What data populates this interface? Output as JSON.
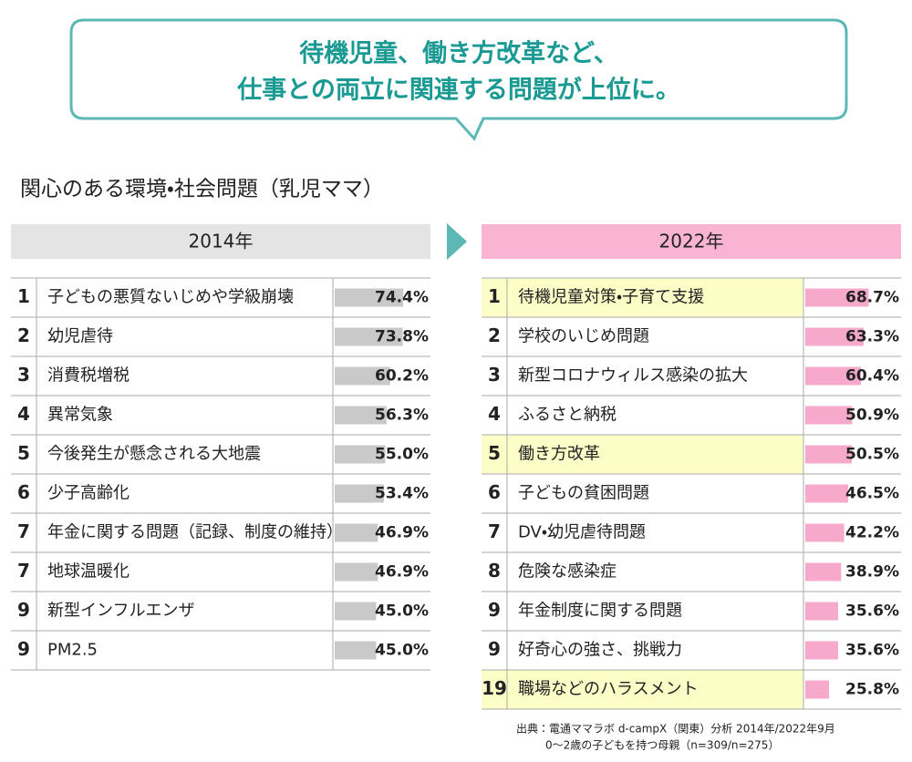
{
  "callout": [
    "待機児童、働き方改革など、",
    "仕事との両立に関連する問題が上位に。"
  ],
  "heading": "関心のある環境・社会問題（乳児ママ）",
  "source": [
    "出典：電通ママラボ d-campX（関東）分析 2014年/2022年9月",
    "0～2歳の子どもを持つ母親（n=309/n=275）"
  ],
  "chart_data": [
    {
      "type": "bar",
      "title": "2014年",
      "header_color": "#e4e4e4",
      "color": "#c9c9c9",
      "xlim": [
        0,
        100
      ],
      "ranks": [
        1,
        2,
        3,
        4,
        5,
        6,
        7,
        7,
        9,
        9
      ],
      "categories": [
        "子どもの悪質ないじめや学級崩壊",
        "幼児虐待",
        "消費税増税",
        "異常気象",
        "今後発生が懸念される大地震",
        "少子高齢化",
        "年金に関する問題（記録、制度の維持）",
        "地球温暖化",
        "新型インフルエンザ",
        "PM2.5"
      ],
      "values": [
        74.4,
        73.8,
        60.2,
        56.3,
        55.0,
        53.4,
        46.9,
        46.9,
        45.0,
        45.0
      ],
      "value_labels": [
        "74.4%",
        "73.8%",
        "60.2%",
        "56.3%",
        "55.0%",
        "53.4%",
        "46.9%",
        "46.9%",
        "45.0%",
        "45.0%"
      ],
      "highlighted": [
        false,
        false,
        false,
        false,
        false,
        false,
        false,
        false,
        false,
        false
      ],
      "highlight_color": "#fdfdc8"
    },
    {
      "type": "bar",
      "title": "2022年",
      "header_color": "#f9b3d3",
      "color": "#f7a9cb",
      "xlim": [
        0,
        100
      ],
      "ranks": [
        1,
        2,
        3,
        4,
        5,
        6,
        7,
        8,
        9,
        9,
        19
      ],
      "categories": [
        "待機児童対策・子育て支援",
        "学校のいじめ問題",
        "新型コロナウィルス感染の拡大",
        "ふるさと納税",
        "働き方改革",
        "子どもの貧困問題",
        "DV・幼児虐待問題",
        "危険な感染症",
        "年金制度に関する問題",
        "好奇心の強さ、挑戦力",
        "職場などのハラスメント"
      ],
      "values": [
        68.7,
        63.3,
        60.4,
        50.9,
        50.5,
        46.5,
        42.2,
        38.9,
        35.6,
        35.6,
        25.8
      ],
      "value_labels": [
        "68.7%",
        "63.3%",
        "60.4%",
        "50.9%",
        "50.5%",
        "46.5%",
        "42.2%",
        "38.9%",
        "35.6%",
        "35.6%",
        "25.8%"
      ],
      "highlighted": [
        true,
        false,
        false,
        false,
        true,
        false,
        false,
        false,
        false,
        false,
        true
      ],
      "highlight_color": "#fdfdc8"
    }
  ]
}
